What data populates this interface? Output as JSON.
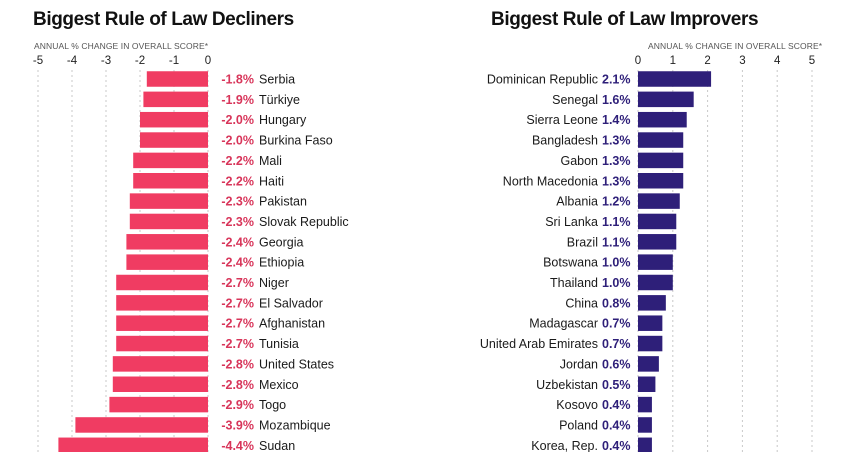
{
  "colors": {
    "decliner_bar": "#f03c62",
    "decliner_value": "#d8355a",
    "improver_bar": "#2e1f79",
    "improver_value": "#2e1f79",
    "grid": "#c8c8c8"
  },
  "chart_data": [
    {
      "type": "bar",
      "orientation": "horizontal",
      "title": "Biggest Rule of Law Decliners",
      "xlabel": "ANNUAL % CHANGE IN OVERALL SCORE*",
      "xlim": [
        -5,
        0
      ],
      "xticks": [
        "-5",
        "-4",
        "-3",
        "-2",
        "-1",
        "0"
      ],
      "grid": true,
      "value_suffix": "%",
      "categories": [
        "Serbia",
        "Türkiye",
        "Hungary",
        "Burkina Faso",
        "Mali",
        "Haiti",
        "Pakistan",
        "Slovak Republic",
        "Georgia",
        "Ethiopia",
        "Niger",
        "El Salvador",
        "Afghanistan",
        "Tunisia",
        "United States",
        "Mexico",
        "Togo",
        "Mozambique",
        "Sudan"
      ],
      "values": [
        -1.8,
        -1.9,
        -2.0,
        -2.0,
        -2.2,
        -2.2,
        -2.3,
        -2.3,
        -2.4,
        -2.4,
        -2.7,
        -2.7,
        -2.7,
        -2.7,
        -2.8,
        -2.8,
        -2.9,
        -3.9,
        -4.4
      ],
      "value_labels": [
        "-1.8%",
        "-1.9%",
        "-2.0%",
        "-2.0%",
        "-2.2%",
        "-2.2%",
        "-2.3%",
        "-2.3%",
        "-2.4%",
        "-2.4%",
        "-2.7%",
        "-2.7%",
        "-2.7%",
        "-2.7%",
        "-2.8%",
        "-2.8%",
        "-2.9%",
        "-3.9%",
        "-4.4%"
      ]
    },
    {
      "type": "bar",
      "orientation": "horizontal",
      "title": "Biggest Rule of Law Improvers",
      "xlabel": "ANNUAL % CHANGE IN OVERALL SCORE*",
      "xlim": [
        0,
        5
      ],
      "xticks": [
        "0",
        "1",
        "2",
        "3",
        "4",
        "5"
      ],
      "grid": true,
      "value_suffix": "%",
      "categories": [
        "Dominican Republic",
        "Senegal",
        "Sierra Leone",
        "Bangladesh",
        "Gabon",
        "North Macedonia",
        "Albania",
        "Sri Lanka",
        "Brazil",
        "Botswana",
        "Thailand",
        "China",
        "Madagascar",
        "United Arab Emirates",
        "Jordan",
        "Uzbekistan",
        "Kosovo",
        "Poland",
        "Korea, Rep."
      ],
      "values": [
        2.1,
        1.6,
        1.4,
        1.3,
        1.3,
        1.3,
        1.2,
        1.1,
        1.1,
        1.0,
        1.0,
        0.8,
        0.7,
        0.7,
        0.6,
        0.5,
        0.4,
        0.4,
        0.4
      ],
      "value_labels": [
        "2.1%",
        "1.6%",
        "1.4%",
        "1.3%",
        "1.3%",
        "1.3%",
        "1.2%",
        "1.1%",
        "1.1%",
        "1.0%",
        "1.0%",
        "0.8%",
        "0.7%",
        "0.7%",
        "0.6%",
        "0.5%",
        "0.4%",
        "0.4%",
        "0.4%"
      ]
    }
  ]
}
